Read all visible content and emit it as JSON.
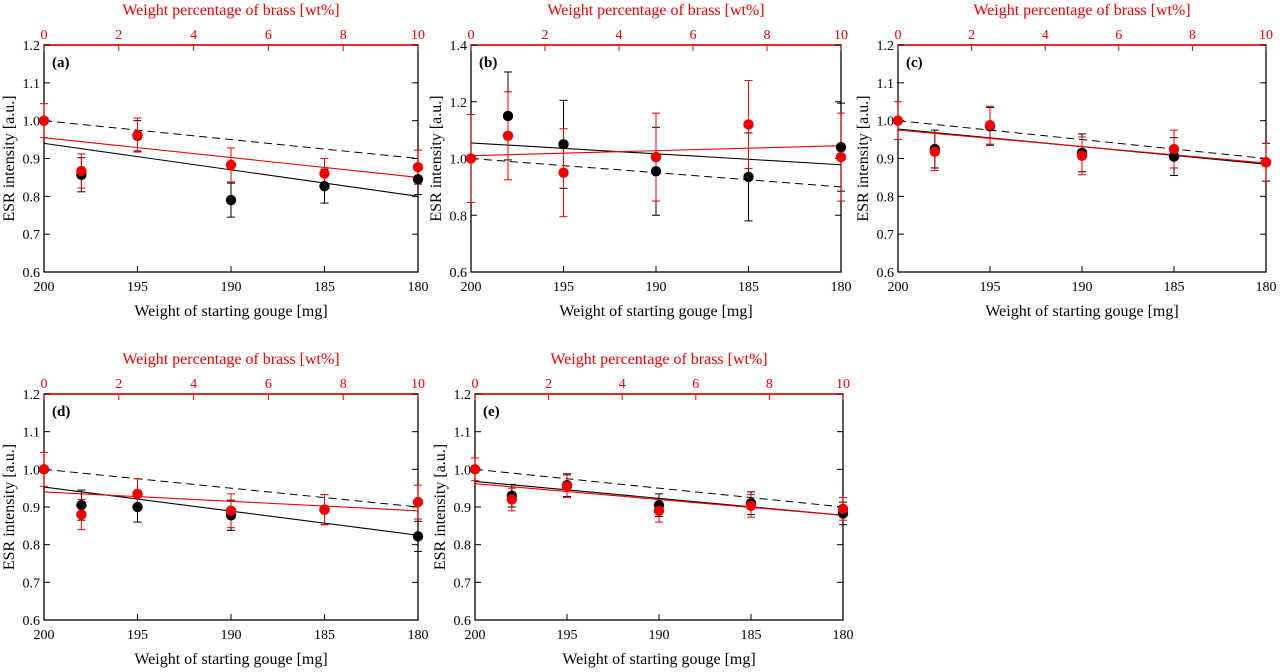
{
  "figure": {
    "colors": {
      "black_series": "#000000",
      "red_series": "#ee0000",
      "reference_line": "#000000",
      "axes": "#000000",
      "top_axis": "#ee0000"
    }
  },
  "chart_data": [
    {
      "type": "scatter",
      "panel_label": "(a)",
      "xlabel": "Weight of starting gouge [mg]",
      "ylabel": "ESR intensity [a.u.]",
      "x2label": "Weight percentage of brass [wt%]",
      "xlim": [
        200,
        180
      ],
      "x2lim": [
        0,
        10
      ],
      "ylim": [
        0.6,
        1.2
      ],
      "xticks": [
        200,
        195,
        190,
        185,
        180
      ],
      "x2ticks": [
        0,
        2,
        4,
        6,
        8,
        10
      ],
      "yticks": [
        0.6,
        0.7,
        0.8,
        0.9,
        1.0,
        1.1,
        1.2
      ],
      "reference_line": {
        "x": [
          200,
          180
        ],
        "y": [
          1.0,
          0.9
        ],
        "style": "dashed"
      },
      "series": [
        {
          "color": "black",
          "x": [
            198,
            195,
            190,
            185,
            180
          ],
          "y": [
            0.857,
            0.96,
            0.79,
            0.827,
            0.845
          ],
          "err": [
            0.045,
            0.04,
            0.045,
            0.045,
            0.04
          ],
          "fit": {
            "x": [
              200,
              180
            ],
            "y": [
              0.94,
              0.8
            ]
          }
        },
        {
          "color": "red",
          "x": [
            200,
            198,
            195,
            190,
            185,
            180
          ],
          "y": [
            1.0,
            0.867,
            0.962,
            0.883,
            0.86,
            0.877
          ],
          "err": [
            0.045,
            0.045,
            0.045,
            0.045,
            0.04,
            0.045
          ],
          "fit": {
            "x": [
              200,
              180
            ],
            "y": [
              0.955,
              0.85
            ]
          }
        }
      ]
    },
    {
      "type": "scatter",
      "panel_label": "(b)",
      "xlabel": "Weight of starting gouge [mg]",
      "ylabel": "ESR intensity [a.u.]",
      "x2label": "Weight percentage of brass [wt%]",
      "xlim": [
        200,
        180
      ],
      "x2lim": [
        0,
        10
      ],
      "ylim": [
        0.6,
        1.4
      ],
      "xticks": [
        200,
        195,
        190,
        185,
        180
      ],
      "x2ticks": [
        0,
        2,
        4,
        6,
        8,
        10
      ],
      "yticks": [
        0.6,
        0.8,
        1.0,
        1.2,
        1.4
      ],
      "reference_line": {
        "x": [
          200,
          180
        ],
        "y": [
          1.0,
          0.9
        ],
        "style": "dashed"
      },
      "series": [
        {
          "color": "black",
          "x": [
            198,
            195,
            190,
            185,
            180
          ],
          "y": [
            1.15,
            1.05,
            0.955,
            0.935,
            1.04
          ],
          "err": [
            0.155,
            0.155,
            0.155,
            0.155,
            0.155
          ],
          "fit": {
            "x": [
              200,
              180
            ],
            "y": [
              1.055,
              0.978
            ]
          }
        },
        {
          "color": "red",
          "x": [
            200,
            198,
            195,
            190,
            185,
            180
          ],
          "y": [
            1.0,
            1.08,
            0.95,
            1.005,
            1.12,
            1.005
          ],
          "err": [
            0.155,
            0.155,
            0.155,
            0.155,
            0.155,
            0.155
          ],
          "fit": {
            "x": [
              200,
              180
            ],
            "y": [
              1.01,
              1.045
            ]
          }
        }
      ]
    },
    {
      "type": "scatter",
      "panel_label": "(c)",
      "xlabel": "Weight of starting gouge [mg]",
      "ylabel": "ESR intensity [a.u.]",
      "x2label": "Weight percentage of brass [wt%]",
      "xlim": [
        200,
        180
      ],
      "x2lim": [
        0,
        10
      ],
      "ylim": [
        0.6,
        1.2
      ],
      "xticks": [
        200,
        195,
        190,
        185,
        180
      ],
      "x2ticks": [
        0,
        2,
        4,
        6,
        8,
        10
      ],
      "yticks": [
        0.6,
        0.7,
        0.8,
        0.9,
        1.0,
        1.1,
        1.2
      ],
      "reference_line": {
        "x": [
          200,
          180
        ],
        "y": [
          1.0,
          0.9
        ],
        "style": "dashed"
      },
      "series": [
        {
          "color": "black",
          "x": [
            198,
            195,
            190,
            185,
            180
          ],
          "y": [
            0.925,
            0.985,
            0.915,
            0.905,
            0.89
          ],
          "err": [
            0.05,
            0.05,
            0.05,
            0.05,
            0.05
          ],
          "fit": {
            "x": [
              200,
              180
            ],
            "y": [
              0.978,
              0.885
            ]
          }
        },
        {
          "color": "red",
          "x": [
            200,
            198,
            195,
            190,
            185,
            180
          ],
          "y": [
            1.0,
            0.918,
            0.988,
            0.907,
            0.925,
            0.89
          ],
          "err": [
            0.05,
            0.05,
            0.05,
            0.05,
            0.05,
            0.05
          ],
          "fit": {
            "x": [
              200,
              180
            ],
            "y": [
              0.975,
              0.888
            ]
          }
        }
      ]
    },
    {
      "type": "scatter",
      "panel_label": "(d)",
      "xlabel": "Weight of starting gouge [mg]",
      "ylabel": "ESR intensity [a.u.]",
      "x2label": "Weight percentage of brass [wt%]",
      "xlim": [
        200,
        180
      ],
      "x2lim": [
        0,
        10
      ],
      "ylim": [
        0.6,
        1.2
      ],
      "xticks": [
        200,
        195,
        190,
        185,
        180
      ],
      "x2ticks": [
        0,
        2,
        4,
        6,
        8,
        10
      ],
      "yticks": [
        0.6,
        0.7,
        0.8,
        0.9,
        1.0,
        1.1,
        1.2
      ],
      "reference_line": {
        "x": [
          200,
          180
        ],
        "y": [
          1.0,
          0.9
        ],
        "style": "dashed"
      },
      "series": [
        {
          "color": "black",
          "x": [
            198,
            195,
            190,
            185,
            180
          ],
          "y": [
            0.905,
            0.9,
            0.878,
            0.893,
            0.822
          ],
          "err": [
            0.04,
            0.04,
            0.04,
            0.04,
            0.04
          ],
          "fit": {
            "x": [
              200,
              180
            ],
            "y": [
              0.953,
              0.825
            ]
          }
        },
        {
          "color": "red",
          "x": [
            200,
            198,
            195,
            190,
            185,
            180
          ],
          "y": [
            1.0,
            0.88,
            0.935,
            0.89,
            0.893,
            0.913
          ],
          "err": [
            0.045,
            0.04,
            0.04,
            0.045,
            0.04,
            0.045
          ],
          "fit": {
            "x": [
              200,
              180
            ],
            "y": [
              0.94,
              0.89
            ]
          }
        }
      ]
    },
    {
      "type": "scatter",
      "panel_label": "(e)",
      "xlabel": "Weight of starting gouge [mg]",
      "ylabel": "ESR intensity [a.u.]",
      "x2label": "Weight percentage of brass [wt%]",
      "xlim": [
        200,
        180
      ],
      "x2lim": [
        0,
        10
      ],
      "ylim": [
        0.6,
        1.2
      ],
      "xticks": [
        200,
        195,
        190,
        185,
        180
      ],
      "x2ticks": [
        0,
        2,
        4,
        6,
        8,
        10
      ],
      "yticks": [
        0.6,
        0.7,
        0.8,
        0.9,
        1.0,
        1.1,
        1.2
      ],
      "reference_line": {
        "x": [
          200,
          180
        ],
        "y": [
          1.0,
          0.9
        ],
        "style": "dashed"
      },
      "series": [
        {
          "color": "black",
          "x": [
            198,
            195,
            190,
            185,
            180
          ],
          "y": [
            0.93,
            0.958,
            0.905,
            0.91,
            0.883
          ],
          "err": [
            0.03,
            0.03,
            0.03,
            0.03,
            0.03
          ],
          "fit": {
            "x": [
              200,
              180
            ],
            "y": [
              0.968,
              0.878
            ]
          }
        },
        {
          "color": "red",
          "x": [
            200,
            198,
            195,
            190,
            185,
            180
          ],
          "y": [
            1.0,
            0.92,
            0.955,
            0.89,
            0.903,
            0.895
          ],
          "err": [
            0.03,
            0.03,
            0.03,
            0.03,
            0.03,
            0.03
          ],
          "fit": {
            "x": [
              200,
              180
            ],
            "y": [
              0.962,
              0.878
            ]
          }
        }
      ]
    }
  ]
}
